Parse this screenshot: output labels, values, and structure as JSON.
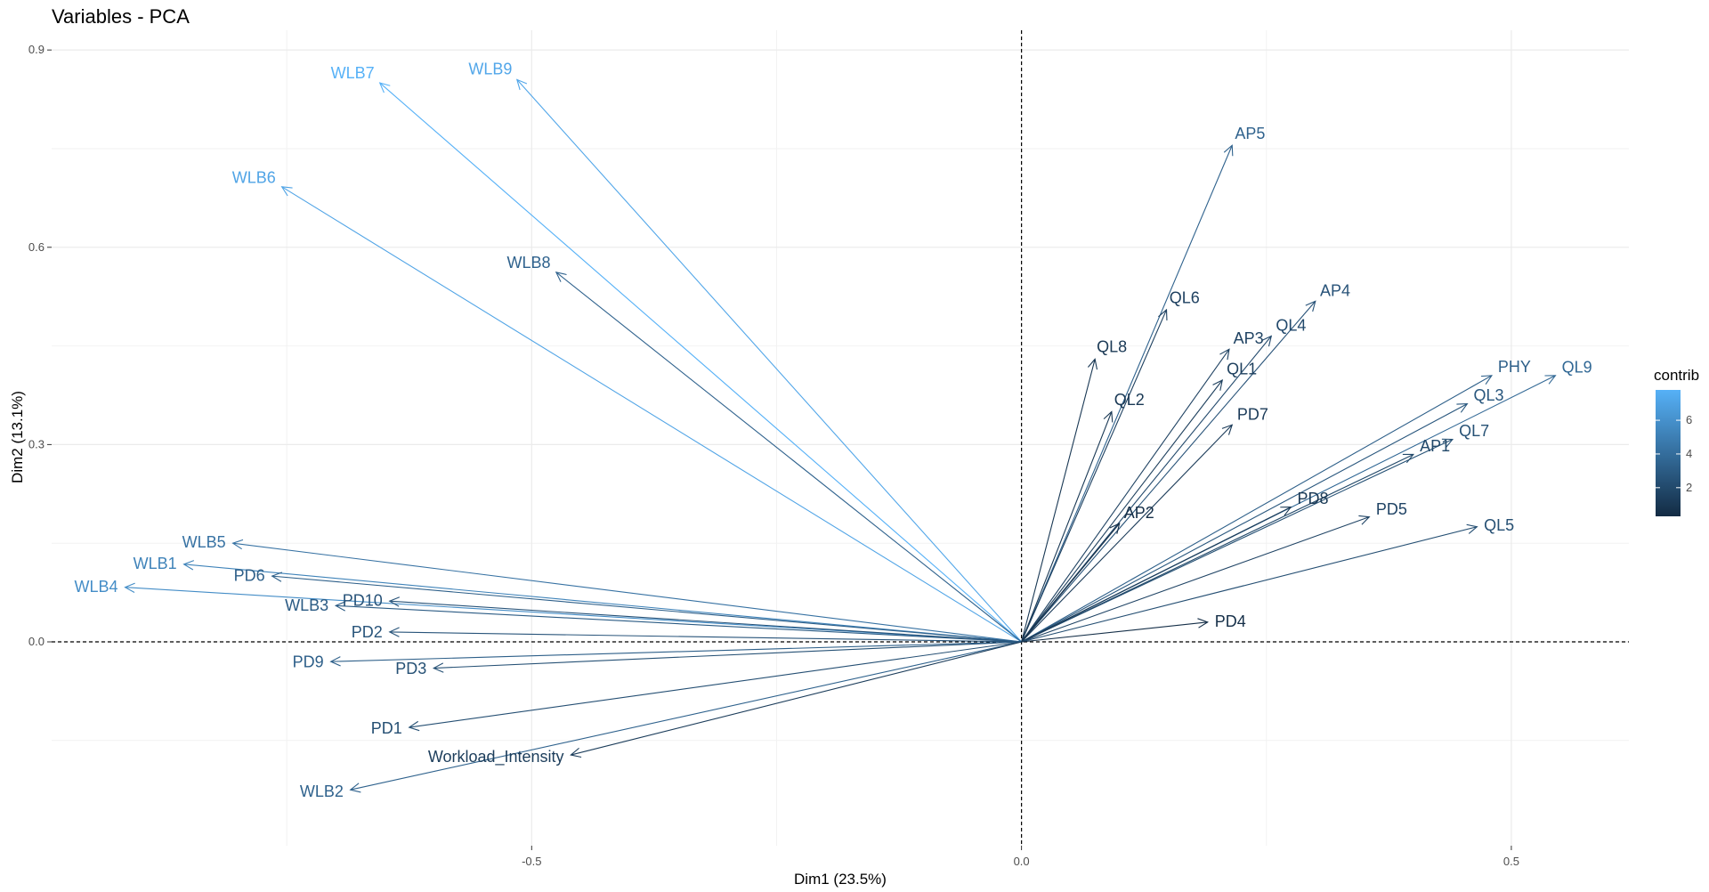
{
  "chart_data": {
    "type": "scatter",
    "subtype": "pca-variable-correlation-arrows",
    "title": "Variables - PCA",
    "xlabel": "Dim1 (23.5%)",
    "ylabel": "Dim2 (13.1%)",
    "xlim": [
      -0.99,
      0.62
    ],
    "ylim": [
      -0.31,
      0.93
    ],
    "x_ticks": [
      -0.5,
      0.0,
      0.5
    ],
    "x_tick_labels": [
      "-0.5",
      "0.0",
      "0.5"
    ],
    "y_ticks": [
      0.0,
      0.3,
      0.6,
      0.9
    ],
    "y_tick_labels": [
      "0.0",
      "0.3",
      "0.6",
      "0.9"
    ],
    "grid": true,
    "reference_lines": {
      "x": 0,
      "y": 0,
      "style": "dashed"
    },
    "legend": {
      "title": "contrib",
      "placement": "right",
      "ticks": [
        2,
        4,
        6
      ],
      "range": [
        0.3,
        7.8
      ],
      "color_low": "#132B43",
      "color_high": "#56B1F7"
    },
    "variables": [
      {
        "name": "WLB7",
        "x": -0.655,
        "y": 0.85,
        "contrib": 7.8
      },
      {
        "name": "WLB9",
        "x": -0.515,
        "y": 0.855,
        "contrib": 7.2
      },
      {
        "name": "WLB6",
        "x": -0.755,
        "y": 0.692,
        "contrib": 7.1
      },
      {
        "name": "WLB8",
        "x": -0.475,
        "y": 0.562,
        "contrib": 3.4
      },
      {
        "name": "WLB5",
        "x": -0.805,
        "y": 0.15,
        "contrib": 4.3
      },
      {
        "name": "WLB1",
        "x": -0.855,
        "y": 0.118,
        "contrib": 5.2
      },
      {
        "name": "WLB4",
        "x": -0.915,
        "y": 0.083,
        "contrib": 5.8
      },
      {
        "name": "PD6",
        "x": -0.765,
        "y": 0.1,
        "contrib": 3.2
      },
      {
        "name": "PD10",
        "x": -0.645,
        "y": 0.062,
        "contrib": 2.5
      },
      {
        "name": "WLB3",
        "x": -0.7,
        "y": 0.055,
        "contrib": 3.0
      },
      {
        "name": "PD2",
        "x": -0.645,
        "y": 0.015,
        "contrib": 2.6
      },
      {
        "name": "PD3",
        "x": -0.6,
        "y": -0.04,
        "contrib": 2.4
      },
      {
        "name": "PD9",
        "x": -0.705,
        "y": -0.03,
        "contrib": 3.2
      },
      {
        "name": "PD1",
        "x": -0.625,
        "y": -0.13,
        "contrib": 2.3
      },
      {
        "name": "WLB2",
        "x": -0.685,
        "y": -0.225,
        "contrib": 3.4
      },
      {
        "name": "Workload_Intensity",
        "x": -0.46,
        "y": -0.172,
        "contrib": 1.3
      },
      {
        "name": "AP5",
        "x": 0.215,
        "y": 0.755,
        "contrib": 3.4
      },
      {
        "name": "QL6",
        "x": 0.148,
        "y": 0.505,
        "contrib": 1.5
      },
      {
        "name": "QL8",
        "x": 0.075,
        "y": 0.43,
        "contrib": 1.0
      },
      {
        "name": "QL2",
        "x": 0.092,
        "y": 0.35,
        "contrib": 1.0
      },
      {
        "name": "AP4",
        "x": 0.3,
        "y": 0.518,
        "contrib": 2.5
      },
      {
        "name": "QL4",
        "x": 0.255,
        "y": 0.465,
        "contrib": 2.0
      },
      {
        "name": "AP3",
        "x": 0.212,
        "y": 0.445,
        "contrib": 1.6
      },
      {
        "name": "QL1",
        "x": 0.205,
        "y": 0.398,
        "contrib": 1.4
      },
      {
        "name": "PD7",
        "x": 0.215,
        "y": 0.33,
        "contrib": 1.2
      },
      {
        "name": "AP2",
        "x": 0.1,
        "y": 0.18,
        "contrib": 0.5
      },
      {
        "name": "PHY",
        "x": 0.48,
        "y": 0.405,
        "contrib": 3.2
      },
      {
        "name": "QL9",
        "x": 0.545,
        "y": 0.405,
        "contrib": 3.7
      },
      {
        "name": "QL3",
        "x": 0.455,
        "y": 0.362,
        "contrib": 2.7
      },
      {
        "name": "QL7",
        "x": 0.44,
        "y": 0.308,
        "contrib": 2.4
      },
      {
        "name": "AP1",
        "x": 0.4,
        "y": 0.285,
        "contrib": 1.9
      },
      {
        "name": "PD8",
        "x": 0.275,
        "y": 0.205,
        "contrib": 1.0
      },
      {
        "name": "PD5",
        "x": 0.355,
        "y": 0.19,
        "contrib": 1.7
      },
      {
        "name": "QL5",
        "x": 0.465,
        "y": 0.175,
        "contrib": 2.3
      },
      {
        "name": "PD4",
        "x": 0.19,
        "y": 0.03,
        "contrib": 0.5
      }
    ]
  }
}
